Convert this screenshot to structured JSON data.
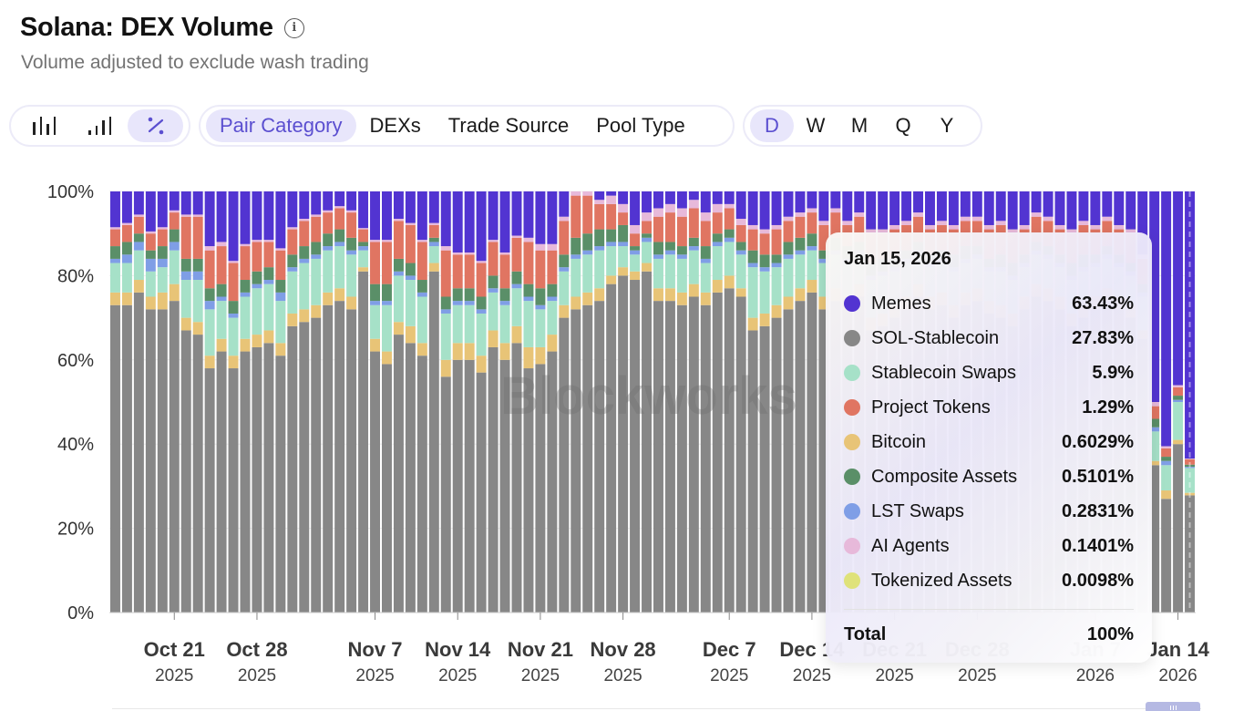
{
  "header": {
    "title": "Solana: DEX Volume",
    "subtitle": "Volume adjusted to exclude wash trading",
    "info_icon": "info-icon"
  },
  "toolbar": {
    "chart_modes": [
      {
        "icon": "bar-chart-icon",
        "label": "Bar",
        "active": false
      },
      {
        "icon": "stacked-bar-icon",
        "label": "Stacked",
        "active": false
      },
      {
        "icon": "percent-icon",
        "label": "%",
        "active": true
      }
    ],
    "breakdowns": [
      {
        "label": "Pair Category",
        "active": true
      },
      {
        "label": "DEXs",
        "active": false
      },
      {
        "label": "Trade Source",
        "active": false
      },
      {
        "label": "Pool Type",
        "active": false
      }
    ],
    "intervals": [
      {
        "label": "D",
        "active": true
      },
      {
        "label": "W",
        "active": false
      },
      {
        "label": "M",
        "active": false
      },
      {
        "label": "Q",
        "active": false
      },
      {
        "label": "Y",
        "active": false
      }
    ]
  },
  "watermark": "Blockworks",
  "tooltip": {
    "date": "Jan 15, 2026",
    "rows": [
      {
        "label": "Memes",
        "value": "63.43%",
        "color": "#5234d1"
      },
      {
        "label": "SOL-Stablecoin",
        "value": "27.83%",
        "color": "#878787"
      },
      {
        "label": "Stablecoin Swaps",
        "value": "5.9%",
        "color": "#a6e1c8"
      },
      {
        "label": "Project Tokens",
        "value": "1.29%",
        "color": "#e07562"
      },
      {
        "label": "Bitcoin",
        "value": "0.6029%",
        "color": "#e8c477"
      },
      {
        "label": "Composite Assets",
        "value": "0.5101%",
        "color": "#5a8f68"
      },
      {
        "label": "LST Swaps",
        "value": "0.2831%",
        "color": "#7f9ee6"
      },
      {
        "label": "AI Agents",
        "value": "0.1401%",
        "color": "#e7b9da"
      },
      {
        "label": "Tokenized Assets",
        "value": "0.0098%",
        "color": "#dfe27a"
      }
    ],
    "total_label": "Total",
    "total_value": "100%"
  },
  "chart_data": {
    "type": "bar",
    "stacked": true,
    "normalized": true,
    "title": "Solana: DEX Volume",
    "subtitle": "Volume adjusted to exclude wash trading",
    "xlabel": "",
    "ylabel": "",
    "ylim": [
      0,
      100
    ],
    "y_ticks": [
      "0%",
      "20%",
      "40%",
      "60%",
      "80%",
      "100%"
    ],
    "x_ticks": [
      {
        "label": "Oct 21",
        "year": "2025",
        "index": 5
      },
      {
        "label": "Oct 28",
        "year": "2025",
        "index": 12
      },
      {
        "label": "Nov 7",
        "year": "2025",
        "index": 22
      },
      {
        "label": "Nov 14",
        "year": "2025",
        "index": 29
      },
      {
        "label": "Nov 21",
        "year": "2025",
        "index": 36
      },
      {
        "label": "Nov 28",
        "year": "2025",
        "index": 43
      },
      {
        "label": "Dec 7",
        "year": "2025",
        "index": 52
      },
      {
        "label": "Dec 14",
        "year": "2025",
        "index": 59
      },
      {
        "label": "Dec 21",
        "year": "2025",
        "index": 66
      },
      {
        "label": "Dec 28",
        "year": "2025",
        "index": 73
      },
      {
        "label": "Jan 7",
        "year": "2026",
        "index": 83
      },
      {
        "label": "Jan 14",
        "year": "2026",
        "index": 90
      }
    ],
    "grid": true,
    "legend": "tooltip",
    "start_date": "2025-10-16",
    "end_date": "2026-01-15",
    "highlight_index": 91,
    "series_order_bottom_to_top": [
      "SOL-Stablecoin",
      "Bitcoin",
      "Stablecoin Swaps",
      "LST Swaps",
      "Composite Assets",
      "Project Tokens",
      "AI Agents",
      "Tokenized Assets",
      "Memes"
    ],
    "series": [
      {
        "name": "SOL-Stablecoin",
        "color": "#878787",
        "values": [
          73,
          73,
          76,
          72,
          72,
          74,
          67,
          66,
          58,
          62,
          58,
          62,
          63,
          64,
          61,
          68,
          69,
          70,
          73,
          74,
          72,
          81,
          62,
          59,
          66,
          64,
          61,
          81,
          56,
          60,
          60,
          57,
          63,
          60,
          64,
          58,
          59,
          62,
          70,
          72,
          73,
          74,
          78,
          80,
          79,
          81,
          74,
          74,
          73,
          75,
          73,
          76,
          77,
          75,
          67,
          68,
          70,
          72,
          74,
          76,
          72,
          74,
          72,
          75,
          67,
          68,
          70,
          72,
          75,
          72,
          73,
          70,
          73,
          74,
          71,
          70,
          68,
          72,
          75,
          74,
          72,
          68,
          70,
          72,
          74,
          72,
          70,
          65,
          35,
          27,
          40,
          27.83
        ]
      },
      {
        "name": "Bitcoin",
        "color": "#e8c477",
        "values": [
          3,
          3,
          3,
          3,
          4,
          4,
          3,
          3,
          3,
          3,
          3,
          3,
          3,
          3,
          3,
          3,
          3,
          3,
          3,
          3,
          3,
          1,
          3,
          3,
          3,
          4,
          3,
          2,
          4,
          4,
          4,
          4,
          4,
          4,
          4,
          5,
          4,
          4,
          3,
          3,
          3,
          3,
          2,
          2,
          2,
          2,
          3,
          3,
          3,
          3,
          3,
          3,
          3,
          2,
          3,
          3,
          3,
          3,
          3,
          3,
          3,
          3,
          3,
          3,
          3,
          3,
          3,
          3,
          3,
          3,
          3,
          3,
          3,
          3,
          3,
          3,
          3,
          3,
          3,
          3,
          3,
          3,
          3,
          3,
          3,
          3,
          3,
          2,
          1,
          2,
          1,
          0.6029
        ]
      },
      {
        "name": "Stablecoin Swaps",
        "color": "#a6e1c8",
        "values": [
          7,
          7,
          7,
          6,
          6,
          8,
          9,
          10,
          11,
          9,
          9,
          10,
          11,
          11,
          10,
          10,
          11,
          11,
          10,
          10,
          10,
          4,
          8,
          11,
          11,
          11,
          11,
          4,
          11,
          9,
          9,
          10,
          9,
          9,
          9,
          11,
          9,
          8,
          8,
          9,
          9,
          9,
          7,
          5,
          4,
          5,
          7,
          8,
          8,
          8,
          7,
          8,
          8,
          8,
          12,
          10,
          9,
          9,
          8,
          7,
          8,
          8,
          8,
          7,
          9,
          9,
          8,
          8,
          7,
          7,
          7,
          8,
          7,
          7,
          7,
          8,
          8,
          7,
          7,
          7,
          7,
          8,
          8,
          7,
          7,
          7,
          7,
          8,
          7,
          6,
          9,
          5.9
        ]
      },
      {
        "name": "LST Swaps",
        "color": "#7f9ee6",
        "values": [
          1,
          2,
          2,
          3,
          2,
          2,
          2,
          2,
          2,
          1,
          1,
          1,
          1,
          1,
          2,
          1,
          1,
          1,
          1,
          1,
          1,
          1,
          1,
          1,
          1,
          1,
          1,
          1,
          1,
          1,
          1,
          1,
          1,
          1,
          1,
          1,
          1,
          1,
          1,
          1,
          1,
          1,
          1,
          1,
          1,
          1,
          1,
          1,
          1,
          1,
          1,
          1,
          1,
          1,
          1,
          1,
          1,
          1,
          1,
          1,
          1,
          1,
          1,
          1,
          1,
          1,
          1,
          1,
          1,
          1,
          1,
          1,
          1,
          1,
          1,
          1,
          1,
          1,
          1,
          1,
          1,
          1,
          1,
          1,
          1,
          1,
          1,
          1,
          1,
          1,
          0.5,
          0.2831
        ]
      },
      {
        "name": "Composite Assets",
        "color": "#5a8f68",
        "values": [
          3,
          3,
          2,
          2,
          3,
          3,
          3,
          3,
          3,
          3,
          3,
          3,
          3,
          3,
          3,
          3,
          3,
          3,
          3,
          3,
          3,
          1,
          4,
          4,
          3,
          3,
          3,
          1,
          3,
          3,
          3,
          3,
          3,
          3,
          3,
          3,
          4,
          3,
          3,
          4,
          4,
          4,
          3,
          4,
          1,
          1,
          3,
          2,
          2,
          2,
          3,
          2,
          2,
          2,
          3,
          3,
          2,
          3,
          3,
          3,
          2,
          3,
          3,
          2,
          3,
          3,
          2,
          2,
          2,
          2,
          2,
          3,
          3,
          2,
          2,
          3,
          3,
          2,
          2,
          2,
          2,
          3,
          3,
          2,
          2,
          2,
          2,
          2,
          2,
          1,
          1,
          0.5101
        ]
      },
      {
        "name": "Project Tokens",
        "color": "#e07562",
        "values": [
          4,
          4,
          4,
          4,
          4,
          4,
          10,
          10,
          9,
          9,
          9,
          8,
          7,
          6,
          7,
          6,
          6,
          6,
          5,
          5,
          6,
          3,
          10,
          10,
          9,
          9,
          9,
          3,
          11,
          8,
          8,
          8,
          8,
          8,
          8,
          10,
          9,
          8,
          8,
          10,
          9,
          6,
          6,
          3,
          3,
          3,
          6,
          7,
          7,
          7,
          6,
          5,
          5,
          4,
          5,
          5,
          6,
          5,
          5,
          5,
          6,
          6,
          5,
          6,
          7,
          6,
          7,
          6,
          6,
          6,
          6,
          6,
          6,
          6,
          7,
          7,
          7,
          6,
          6,
          6,
          6,
          7,
          7,
          6,
          6,
          6,
          7,
          6,
          3,
          2,
          2,
          1.29
        ]
      },
      {
        "name": "AI Agents",
        "color": "#e7b9da",
        "values": [
          0.5,
          0.5,
          0.5,
          0.5,
          0.5,
          0.5,
          0.5,
          0.5,
          1,
          1,
          0.5,
          0.5,
          0.5,
          0.5,
          0.5,
          0.5,
          0.5,
          0.5,
          0.5,
          0.5,
          0.5,
          0.3,
          0.5,
          0.5,
          0.5,
          0.5,
          0.5,
          0.5,
          1,
          0.5,
          0.5,
          0.5,
          0.5,
          0.5,
          0.5,
          1,
          1.5,
          1.5,
          1,
          1,
          1,
          1,
          2,
          2,
          2,
          2,
          2,
          2,
          2,
          2,
          2,
          2,
          1,
          1.5,
          1,
          1,
          1,
          1,
          1,
          1,
          1,
          1,
          1,
          1,
          1,
          1,
          1,
          1,
          1,
          1,
          1,
          1,
          1,
          1,
          1,
          1,
          1,
          1,
          1,
          1,
          1,
          1,
          1,
          1,
          1,
          1,
          1,
          1,
          1,
          0.5,
          0.5,
          0.1401
        ]
      },
      {
        "name": "Tokenized Assets",
        "color": "#dfe27a",
        "values": [
          0,
          0,
          0,
          0,
          0,
          0,
          0,
          0,
          0,
          0,
          0,
          0,
          0,
          0,
          0,
          0,
          0,
          0,
          0,
          0,
          0,
          0,
          0,
          0,
          0,
          0,
          0,
          0,
          0,
          0,
          0,
          0,
          0,
          0,
          0,
          0,
          0,
          0,
          0,
          0,
          0,
          0,
          0,
          0,
          0,
          0,
          0,
          0,
          0,
          0,
          0,
          0,
          0,
          0,
          0,
          0,
          0,
          0,
          0,
          0,
          0,
          0,
          0,
          0,
          0,
          0,
          0,
          0,
          0,
          0,
          0,
          0,
          0,
          0,
          0,
          0,
          0,
          0,
          0,
          0,
          0,
          0,
          0,
          0,
          0,
          0,
          0,
          0,
          0,
          0,
          0,
          0.0098
        ]
      },
      {
        "name": "Memes",
        "color": "#5234d1",
        "values": "remainder to 100%"
      }
    ]
  }
}
